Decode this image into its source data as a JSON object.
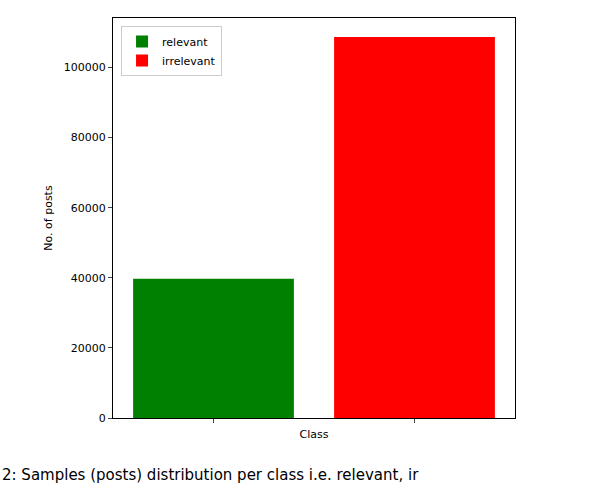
{
  "chart_data": {
    "type": "bar",
    "x_label": "Class",
    "y_label": "No. of posts",
    "annotations": [
      "2: Samples (posts) distribution per class i.e. relevant, ir"
    ],
    "categories": [
      null,
      null
    ],
    "series": [
      {
        "name": "relevant",
        "color": "#008000",
        "values": [
          39700,
          null
        ]
      },
      {
        "name": "irrelevant",
        "color": "#ff0000",
        "values": [
          null,
          108700
        ]
      }
    ],
    "ylim": [
      0,
      114100
    ],
    "yticks": [
      0,
      20000,
      40000,
      60000,
      80000,
      100000
    ],
    "grid": false,
    "legend": "upper left"
  }
}
